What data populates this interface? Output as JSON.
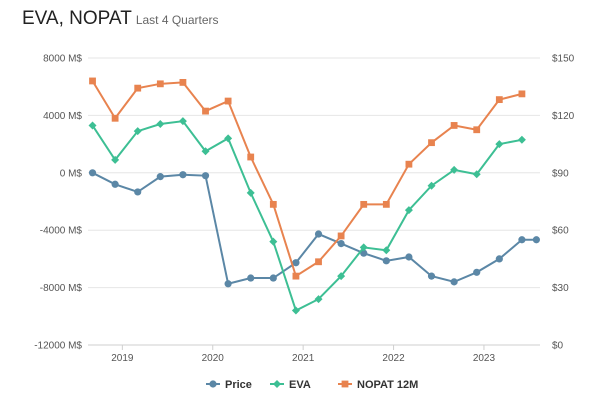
{
  "header": {
    "title": "EVA, NOPAT",
    "subtitle": "Last 4 Quarters"
  },
  "chart_data": {
    "type": "line",
    "x": [
      2018.67,
      2018.92,
      2019.17,
      2019.42,
      2019.67,
      2019.92,
      2020.17,
      2020.42,
      2020.67,
      2020.92,
      2021.17,
      2021.42,
      2021.67,
      2021.92,
      2022.17,
      2022.42,
      2022.67,
      2022.92,
      2023.17,
      2023.42,
      2023.58
    ],
    "x_ticks": [
      "2019",
      "2020",
      "2021",
      "2022",
      "2023"
    ],
    "x_tick_values": [
      2019,
      2020,
      2021,
      2022,
      2023
    ],
    "xlim": [
      2018.62,
      2023.62
    ],
    "y_left": {
      "ticks": [
        "8000 M$",
        "4000 M$",
        "0 M$",
        "-4000 M$",
        "-8000 M$",
        "-12000 M$"
      ],
      "tick_values": [
        8000,
        4000,
        0,
        -4000,
        -8000,
        -12000
      ],
      "ylim": [
        -12000,
        8000
      ]
    },
    "y_right": {
      "ticks": [
        "$150",
        "$120",
        "$90",
        "$60",
        "$30",
        "$0"
      ],
      "tick_values": [
        150,
        120,
        90,
        60,
        30,
        0
      ],
      "ylim": [
        0,
        150
      ]
    },
    "grid": true,
    "legend_position": "bottom",
    "series": [
      {
        "name": "Price",
        "axis": "right",
        "color": "#5b87a6",
        "marker": "circle",
        "x": [
          2018.67,
          2018.92,
          2019.17,
          2019.42,
          2019.67,
          2019.92,
          2020.17,
          2020.42,
          2020.67,
          2020.92,
          2021.17,
          2021.42,
          2021.67,
          2021.92,
          2022.17,
          2022.42,
          2022.67,
          2022.92,
          2023.17,
          2023.42,
          2023.58
        ],
        "values": [
          90,
          84,
          80,
          88,
          89,
          88.5,
          32,
          35,
          35,
          43,
          58,
          53,
          48,
          44,
          46,
          36,
          33,
          38,
          45,
          55,
          55
        ]
      },
      {
        "name": "EVA",
        "axis": "left",
        "color": "#3dbf94",
        "marker": "diamond",
        "x": [
          2018.67,
          2018.92,
          2019.17,
          2019.42,
          2019.67,
          2019.92,
          2020.17,
          2020.42,
          2020.67,
          2020.92,
          2021.17,
          2021.42,
          2021.67,
          2021.92,
          2022.17,
          2022.42,
          2022.67,
          2022.92,
          2023.17,
          2023.42
        ],
        "values": [
          3300,
          900,
          2900,
          3400,
          3600,
          1500,
          2400,
          -1400,
          -4800,
          -9600,
          -8800,
          -7200,
          -5200,
          -5400,
          -2600,
          -900,
          200,
          -100,
          2000,
          2300
        ]
      },
      {
        "name": "NOPAT 12M",
        "axis": "left",
        "color": "#e8834f",
        "marker": "square",
        "x": [
          2018.67,
          2018.92,
          2019.17,
          2019.42,
          2019.67,
          2019.92,
          2020.17,
          2020.42,
          2020.67,
          2020.92,
          2021.17,
          2021.42,
          2021.67,
          2021.92,
          2022.17,
          2022.42,
          2022.67,
          2022.92,
          2023.17,
          2023.42
        ],
        "values": [
          6400,
          3800,
          5900,
          6200,
          6300,
          4300,
          5000,
          1100,
          -2200,
          -7200,
          -6200,
          -4400,
          -2200,
          -2200,
          600,
          2100,
          3300,
          3000,
          5100,
          5500
        ]
      }
    ]
  }
}
